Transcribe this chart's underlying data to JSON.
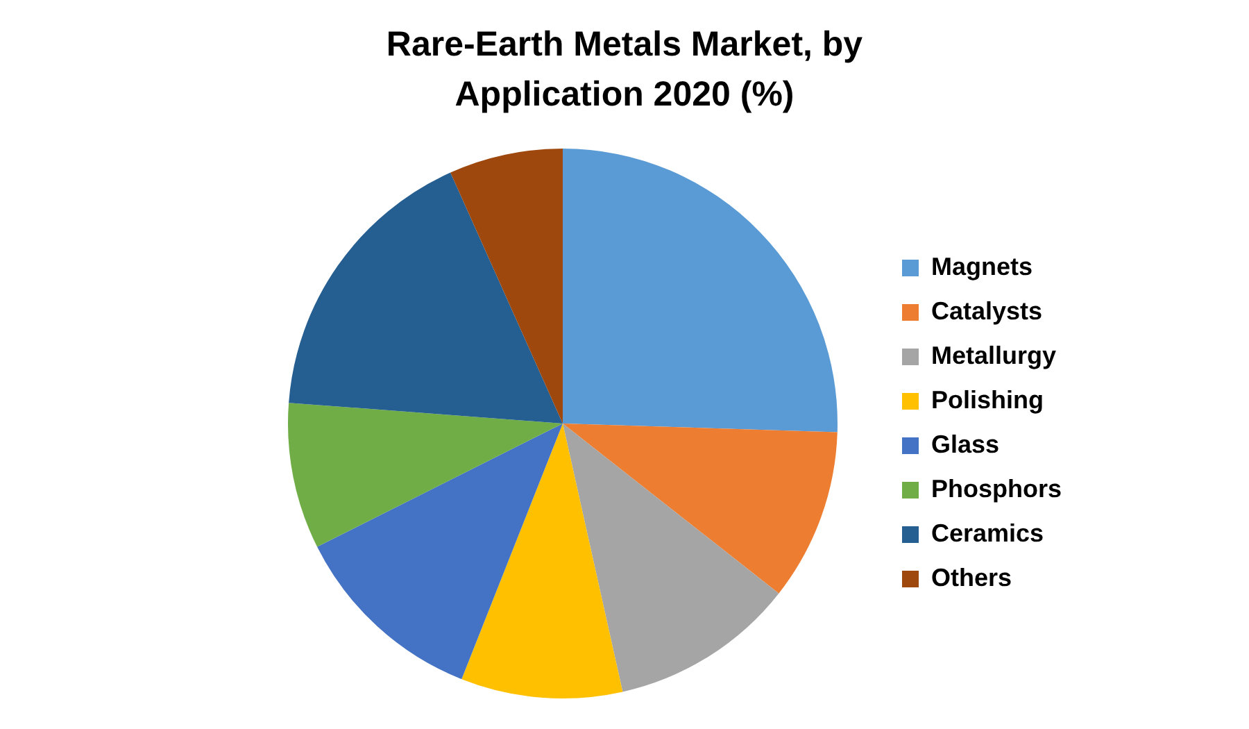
{
  "chart_data": {
    "type": "pie",
    "title": "Rare-Earth Metals Market, by Application 2020 (%)",
    "categories": [
      "Magnets",
      "Catalysts",
      "Metallurgy",
      "Polishing",
      "Glass",
      "Phosphors",
      "Ceramics",
      "Others"
    ],
    "values": [
      25.5,
      10.1,
      10.9,
      9.5,
      11.6,
      8.6,
      17.1,
      6.7
    ],
    "colors": [
      "#5b9bd5",
      "#ed7d31",
      "#a5a5a5",
      "#ffc000",
      "#4472c4",
      "#70ad47",
      "#255e91",
      "#9e480e"
    ],
    "legend": "right"
  }
}
